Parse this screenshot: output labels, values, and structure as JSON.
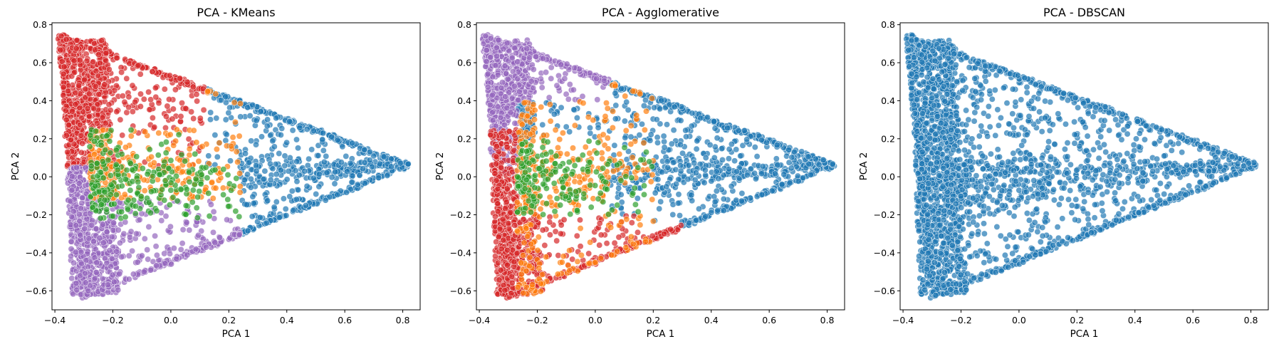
{
  "palette": {
    "blue": "#1f77b4",
    "orange": "#ff7f0e",
    "green": "#2ca02c",
    "red": "#d62728",
    "purple": "#9467bd"
  },
  "chart_data": [
    {
      "type": "scatter",
      "title": "PCA - KMeans",
      "xlabel": "PCA 1",
      "ylabel": "PCA 2",
      "xlim": [
        -0.41,
        0.86
      ],
      "ylim": [
        -0.7,
        0.81
      ],
      "xticks": [
        -0.4,
        -0.2,
        0.0,
        0.2,
        0.4,
        0.6,
        0.8
      ],
      "xtick_labels": [
        "−0.4",
        "−0.2",
        "0.0",
        "0.2",
        "0.4",
        "0.6",
        "0.8"
      ],
      "yticks": [
        -0.6,
        -0.4,
        -0.2,
        0.0,
        0.2,
        0.4,
        0.6,
        0.8
      ],
      "ytick_labels": [
        "−0.6",
        "−0.4",
        "−0.2",
        "0.0",
        "0.2",
        "0.4",
        "0.6",
        "0.8"
      ],
      "grid": false,
      "legend": "none",
      "triangle_vertices": {
        "top": [
          -0.38,
          0.74
        ],
        "right": [
          0.82,
          0.06
        ],
        "bottom": [
          -0.3,
          -0.63
        ]
      },
      "series": [
        {
          "color": "blue",
          "region": "x > 0.25 (right lobe and edges)",
          "count_est": 900
        },
        {
          "color": "red",
          "region": "upper-left band, y > 0.05",
          "count_est": 700
        },
        {
          "color": "purple",
          "region": "lower-left band, y < -0.1",
          "count_est": 700
        },
        {
          "color": "orange",
          "region": "center, streak toward (0.35, 0.0)",
          "count_est": 500
        },
        {
          "color": "green",
          "region": "center-left",
          "count_est": 400
        }
      ]
    },
    {
      "type": "scatter",
      "title": "PCA - Agglomerative",
      "xlabel": "PCA 1",
      "ylabel": "PCA 2",
      "xlim": [
        -0.41,
        0.86
      ],
      "ylim": [
        -0.7,
        0.81
      ],
      "xticks": [
        -0.4,
        -0.2,
        0.0,
        0.2,
        0.4,
        0.6,
        0.8
      ],
      "xtick_labels": [
        "−0.4",
        "−0.2",
        "0.0",
        "0.2",
        "0.4",
        "0.6",
        "0.8"
      ],
      "yticks": [
        -0.6,
        -0.4,
        -0.2,
        0.0,
        0.2,
        0.4,
        0.6,
        0.8
      ],
      "ytick_labels": [
        "−0.6",
        "−0.4",
        "−0.2",
        "0.0",
        "0.2",
        "0.4",
        "0.6",
        "0.8"
      ],
      "grid": false,
      "legend": "none",
      "triangle_vertices": {
        "top": [
          -0.38,
          0.74
        ],
        "right": [
          0.82,
          0.06
        ],
        "bottom": [
          -0.3,
          -0.63
        ]
      },
      "series": [
        {
          "color": "blue",
          "region": "right and center-right",
          "count_est": 1100
        },
        {
          "color": "purple",
          "region": "upper-left band, y > 0.3",
          "count_est": 500
        },
        {
          "color": "red",
          "region": "lower-left, y < -0.15",
          "count_est": 800
        },
        {
          "color": "orange",
          "region": "center, streak toward (0.25, 0.0)",
          "count_est": 450
        },
        {
          "color": "green",
          "region": "center",
          "count_est": 350
        }
      ]
    },
    {
      "type": "scatter",
      "title": "PCA - DBSCAN",
      "xlabel": "PCA 1",
      "ylabel": "PCA 2",
      "xlim": [
        -0.41,
        0.86
      ],
      "ylim": [
        -0.7,
        0.81
      ],
      "xticks": [
        -0.4,
        -0.2,
        0.0,
        0.2,
        0.4,
        0.6,
        0.8
      ],
      "xtick_labels": [
        "−0.4",
        "−0.2",
        "0.0",
        "0.2",
        "0.4",
        "0.6",
        "0.8"
      ],
      "yticks": [
        -0.6,
        -0.4,
        -0.2,
        0.0,
        0.2,
        0.4,
        0.6,
        0.8
      ],
      "ytick_labels": [
        "−0.6",
        "−0.4",
        "−0.2",
        "0.0",
        "0.2",
        "0.4",
        "0.6",
        "0.8"
      ],
      "grid": false,
      "legend": "none",
      "triangle_vertices": {
        "top": [
          -0.38,
          0.74
        ],
        "right": [
          0.82,
          0.06
        ],
        "bottom": [
          -0.3,
          -0.63
        ]
      },
      "series": [
        {
          "color": "blue",
          "region": "all points",
          "count_est": 3200
        }
      ]
    }
  ]
}
